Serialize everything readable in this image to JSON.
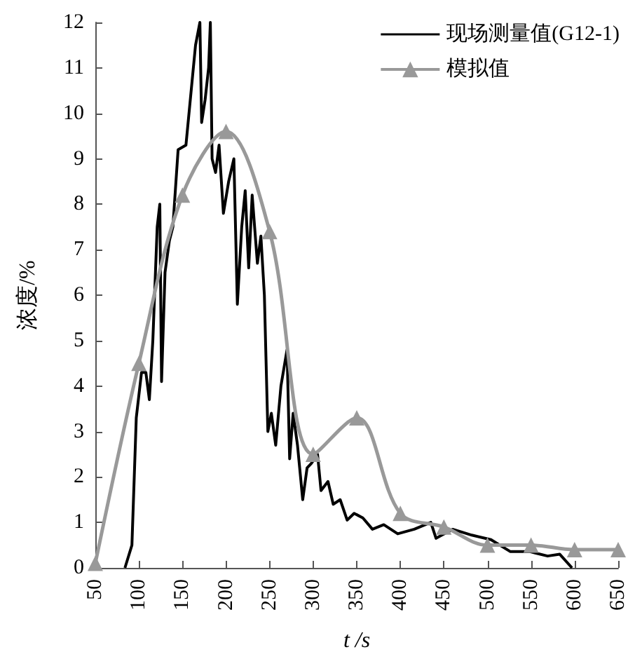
{
  "chart_data": {
    "type": "line",
    "xlabel": "t /s",
    "ylabel": "浓度/%",
    "xlim": [
      50,
      650
    ],
    "xticks": [
      50,
      100,
      150,
      200,
      250,
      300,
      350,
      400,
      450,
      500,
      550,
      600,
      650
    ],
    "ylim": [
      0,
      12
    ],
    "yticks": [
      0,
      1,
      2,
      3,
      4,
      5,
      6,
      7,
      8,
      9,
      10,
      11,
      12
    ],
    "grid": false,
    "legend": "top right",
    "series": [
      {
        "name": "现场测量值(G12-1)",
        "color": "#000000",
        "marker": "none",
        "x": [
          84,
          92,
          97,
          103,
          108,
          112,
          116,
          121,
          124,
          126,
          130,
          135,
          139,
          145,
          154,
          160,
          165,
          170,
          172,
          176,
          180,
          182,
          184,
          188,
          192,
          197,
          203,
          209,
          213,
          218,
          222,
          226,
          230,
          236,
          240,
          244,
          248,
          252,
          257,
          263,
          270,
          273,
          277,
          282,
          288,
          293,
          298,
          305,
          309,
          317,
          323,
          331,
          339,
          347,
          357,
          368,
          381,
          397,
          416,
          435,
          441,
          460,
          482,
          504,
          526,
          548,
          569,
          583,
          597
        ],
        "values": [
          0,
          0.5,
          3.3,
          4.3,
          4.3,
          3.7,
          5,
          7.5,
          8,
          4.1,
          6.5,
          7.2,
          7.5,
          9.2,
          9.3,
          10.5,
          11.5,
          12,
          9.8,
          10.3,
          11,
          12,
          9,
          8.7,
          9.3,
          7.8,
          8.5,
          9,
          5.8,
          7.5,
          8.3,
          6.6,
          8.2,
          6.7,
          7.3,
          6,
          3,
          3.4,
          2.7,
          4,
          4.8,
          2.4,
          3.4,
          2.7,
          1.5,
          2.2,
          2.3,
          2.5,
          1.7,
          1.9,
          1.4,
          1.5,
          1.05,
          1.2,
          1.1,
          0.85,
          0.95,
          0.75,
          0.85,
          1,
          0.65,
          0.85,
          0.72,
          0.62,
          0.36,
          0.36,
          0.26,
          0.3,
          0
        ]
      },
      {
        "name": "模拟值",
        "color": "#999999",
        "marker": "triangle",
        "x": [
          50,
          100,
          150,
          200,
          250,
          300,
          350,
          400,
          450,
          500,
          550,
          600,
          650
        ],
        "values": [
          0.1,
          4.5,
          8.2,
          9.6,
          7.4,
          2.5,
          3.3,
          1.2,
          0.9,
          0.5,
          0.5,
          0.4,
          0.4
        ]
      }
    ]
  }
}
